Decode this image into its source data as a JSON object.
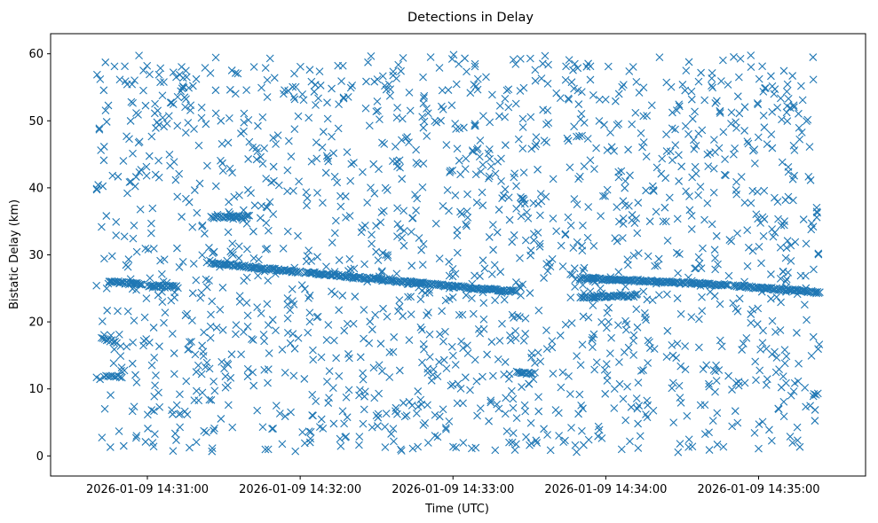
{
  "chart_data": {
    "type": "scatter",
    "title": "Detections in Delay",
    "xlabel": "Time (UTC)",
    "ylabel": "Bistatic Delay (km)",
    "marker": "x",
    "color": "#1f77b4",
    "grid": false,
    "legend": "none",
    "x_start": "2026-01-09 14:30:40",
    "x_end": "2026-01-09 14:35:24",
    "xlim": [
      "2026-01-09 14:30:22",
      "2026-01-09 14:35:42"
    ],
    "ylim": [
      -3,
      63
    ],
    "x_ticks": [
      {
        "value": "2026-01-09 14:31:00",
        "label": "2026-01-09 14:31:00"
      },
      {
        "value": "2026-01-09 14:32:00",
        "label": "2026-01-09 14:32:00"
      },
      {
        "value": "2026-01-09 14:33:00",
        "label": "2026-01-09 14:33:00"
      },
      {
        "value": "2026-01-09 14:34:00",
        "label": "2026-01-09 14:34:00"
      },
      {
        "value": "2026-01-09 14:35:00",
        "label": "2026-01-09 14:35:00"
      }
    ],
    "y_ticks": [
      0,
      10,
      20,
      30,
      40,
      50,
      60
    ],
    "clutter": {
      "count": 1750,
      "delay_range": [
        0.5,
        60
      ]
    },
    "tracks": [
      {
        "start": "2026-01-09 14:30:45",
        "end": "2026-01-09 14:30:58",
        "delay_start": 26.0,
        "delay_end": 25.6,
        "count": 26
      },
      {
        "start": "2026-01-09 14:31:00",
        "end": "2026-01-09 14:31:12",
        "delay_start": 25.4,
        "delay_end": 25.2,
        "count": 22
      },
      {
        "start": "2026-01-09 14:31:25",
        "end": "2026-01-09 14:31:40",
        "delay_start": 35.6,
        "delay_end": 35.7,
        "count": 28
      },
      {
        "start": "2026-01-09 14:31:25",
        "end": "2026-01-09 14:32:00",
        "delay_start": 28.8,
        "delay_end": 27.4,
        "count": 75
      },
      {
        "start": "2026-01-09 14:32:02",
        "end": "2026-01-09 14:33:00",
        "delay_start": 27.4,
        "delay_end": 25.3,
        "count": 125
      },
      {
        "start": "2026-01-09 14:33:00",
        "end": "2026-01-09 14:33:25",
        "delay_start": 25.3,
        "delay_end": 24.5,
        "count": 55
      },
      {
        "start": "2026-01-09 14:33:25",
        "end": "2026-01-09 14:33:31",
        "delay_start": 12.6,
        "delay_end": 12.2,
        "count": 12
      },
      {
        "start": "2026-01-09 14:33:50",
        "end": "2026-01-09 14:34:15",
        "delay_start": 26.5,
        "delay_end": 26.1,
        "count": 55
      },
      {
        "start": "2026-01-09 14:33:50",
        "end": "2026-01-09 14:34:12",
        "delay_start": 23.7,
        "delay_end": 23.9,
        "count": 45
      },
      {
        "start": "2026-01-09 14:34:15",
        "end": "2026-01-09 14:34:48",
        "delay_start": 26.1,
        "delay_end": 25.5,
        "count": 70
      },
      {
        "start": "2026-01-09 14:34:50",
        "end": "2026-01-09 14:35:24",
        "delay_start": 25.4,
        "delay_end": 24.4,
        "count": 75
      },
      {
        "start": "2026-01-09 14:30:42",
        "end": "2026-01-09 14:30:48",
        "delay_start": 17.5,
        "delay_end": 17.0,
        "count": 10
      },
      {
        "start": "2026-01-09 14:30:43",
        "end": "2026-01-09 14:30:50",
        "delay_start": 11.9,
        "delay_end": 11.8,
        "count": 10
      }
    ]
  }
}
